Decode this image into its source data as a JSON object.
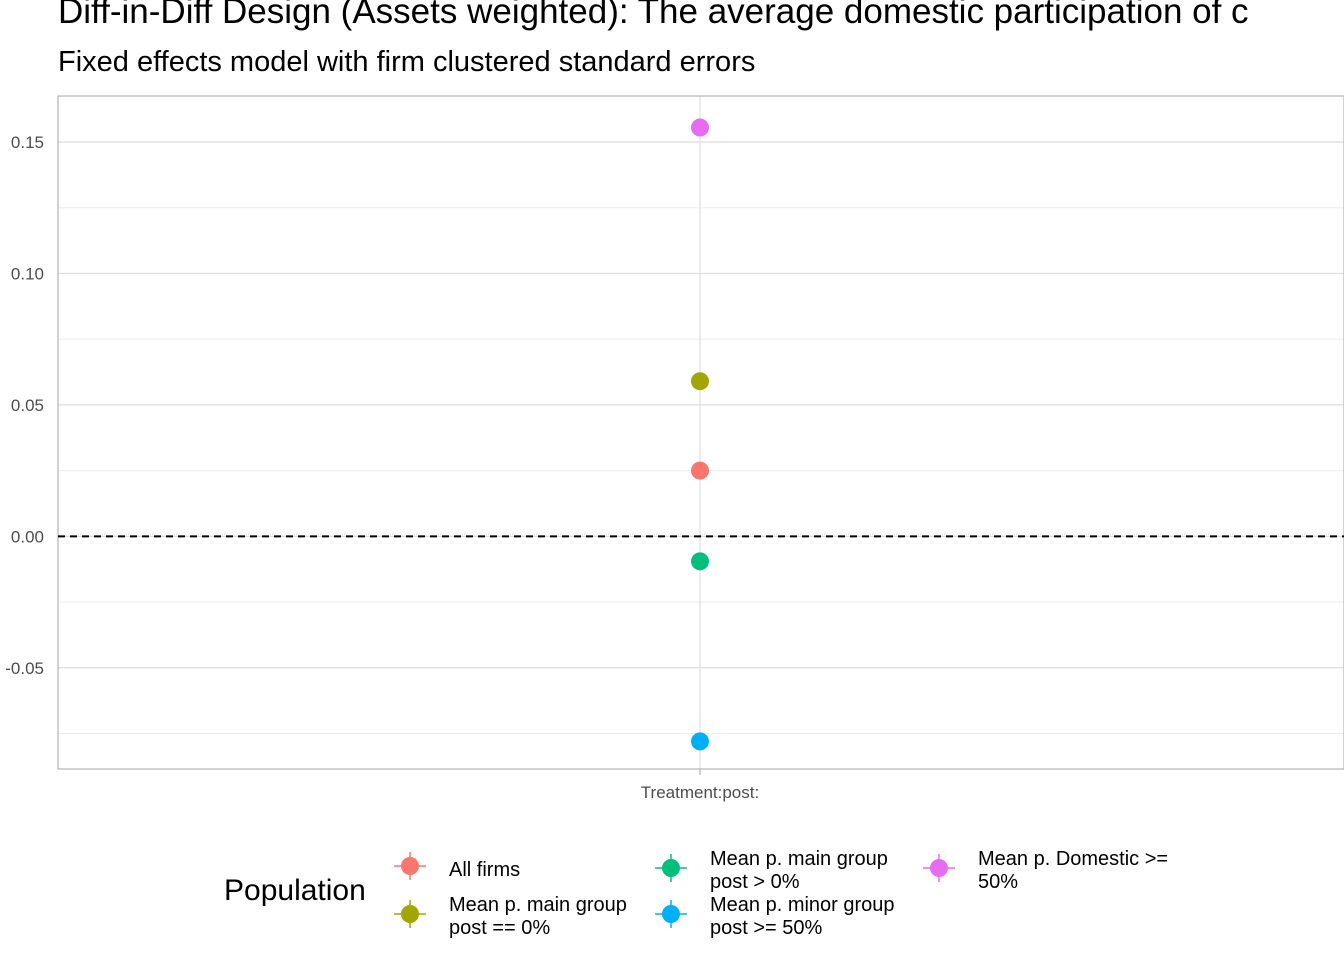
{
  "title": "Diff-in-Diff Design (Assets weighted): The average domestic participation of c",
  "subtitle": "Fixed effects model with firm clustered standard errors",
  "chart_data": {
    "type": "scatter",
    "title": "Diff-in-Diff Design (Assets weighted): The average domestic participation of c",
    "subtitle": "Fixed effects model with firm clustered standard errors",
    "xlabel": "",
    "ylabel": "",
    "categories": [
      "Treatment:post:"
    ],
    "ylim": [
      -0.0885,
      0.1675
    ],
    "yticks": [
      -0.05,
      0.0,
      0.05,
      0.1,
      0.15
    ],
    "ytick_labels": [
      "-0.05",
      "0.00",
      "0.05",
      "0.10",
      "0.15"
    ],
    "reference_line": 0,
    "grid": true,
    "legend_title": "Population",
    "legend_position": "bottom",
    "series": [
      {
        "name": "All firms",
        "color": "#F8766D",
        "x": "Treatment:post:",
        "y": 0.025
      },
      {
        "name": "Mean p. main group post == 0%",
        "color": "#A3A500",
        "x": "Treatment:post:",
        "y": 0.059
      },
      {
        "name": "Mean p. main group post > 0%",
        "color": "#00BF7D",
        "x": "Treatment:post:",
        "y": -0.0095
      },
      {
        "name": "Mean p. minor group post >= 50%",
        "color": "#00B0F6",
        "x": "Treatment:post:",
        "y": -0.078
      },
      {
        "name": "Mean p. Domestic >= 50%",
        "color": "#E76BF3",
        "x": "Treatment:post:",
        "y": 0.1555
      }
    ]
  },
  "legend": {
    "title": "Population",
    "items": [
      {
        "line1": "All firms",
        "line2": "",
        "color": "#F8766D"
      },
      {
        "line1": "Mean p. main group",
        "line2": "post == 0%",
        "color": "#A3A500"
      },
      {
        "line1": "Mean p. main group",
        "line2": "post > 0%",
        "color": "#00BF7D"
      },
      {
        "line1": "Mean p. minor group",
        "line2": "post >= 50%",
        "color": "#00B0F6"
      },
      {
        "line1": "Mean p. Domestic >=",
        "line2": "50%",
        "color": "#E76BF3"
      }
    ]
  }
}
